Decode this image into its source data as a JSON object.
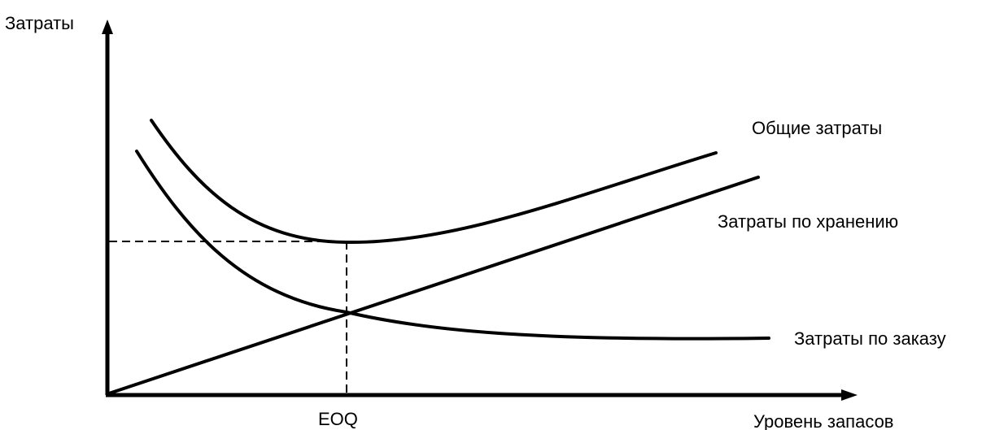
{
  "axes": {
    "y_label": "Затраты",
    "x_label": "Уровень запасов",
    "x_marker": "EOQ"
  },
  "curves": {
    "total": "Общие затраты",
    "holding": "Затраты по хранению",
    "ordering": "Затраты по заказу"
  },
  "colors": {
    "line": "#000000",
    "background": "#ffffff"
  }
}
